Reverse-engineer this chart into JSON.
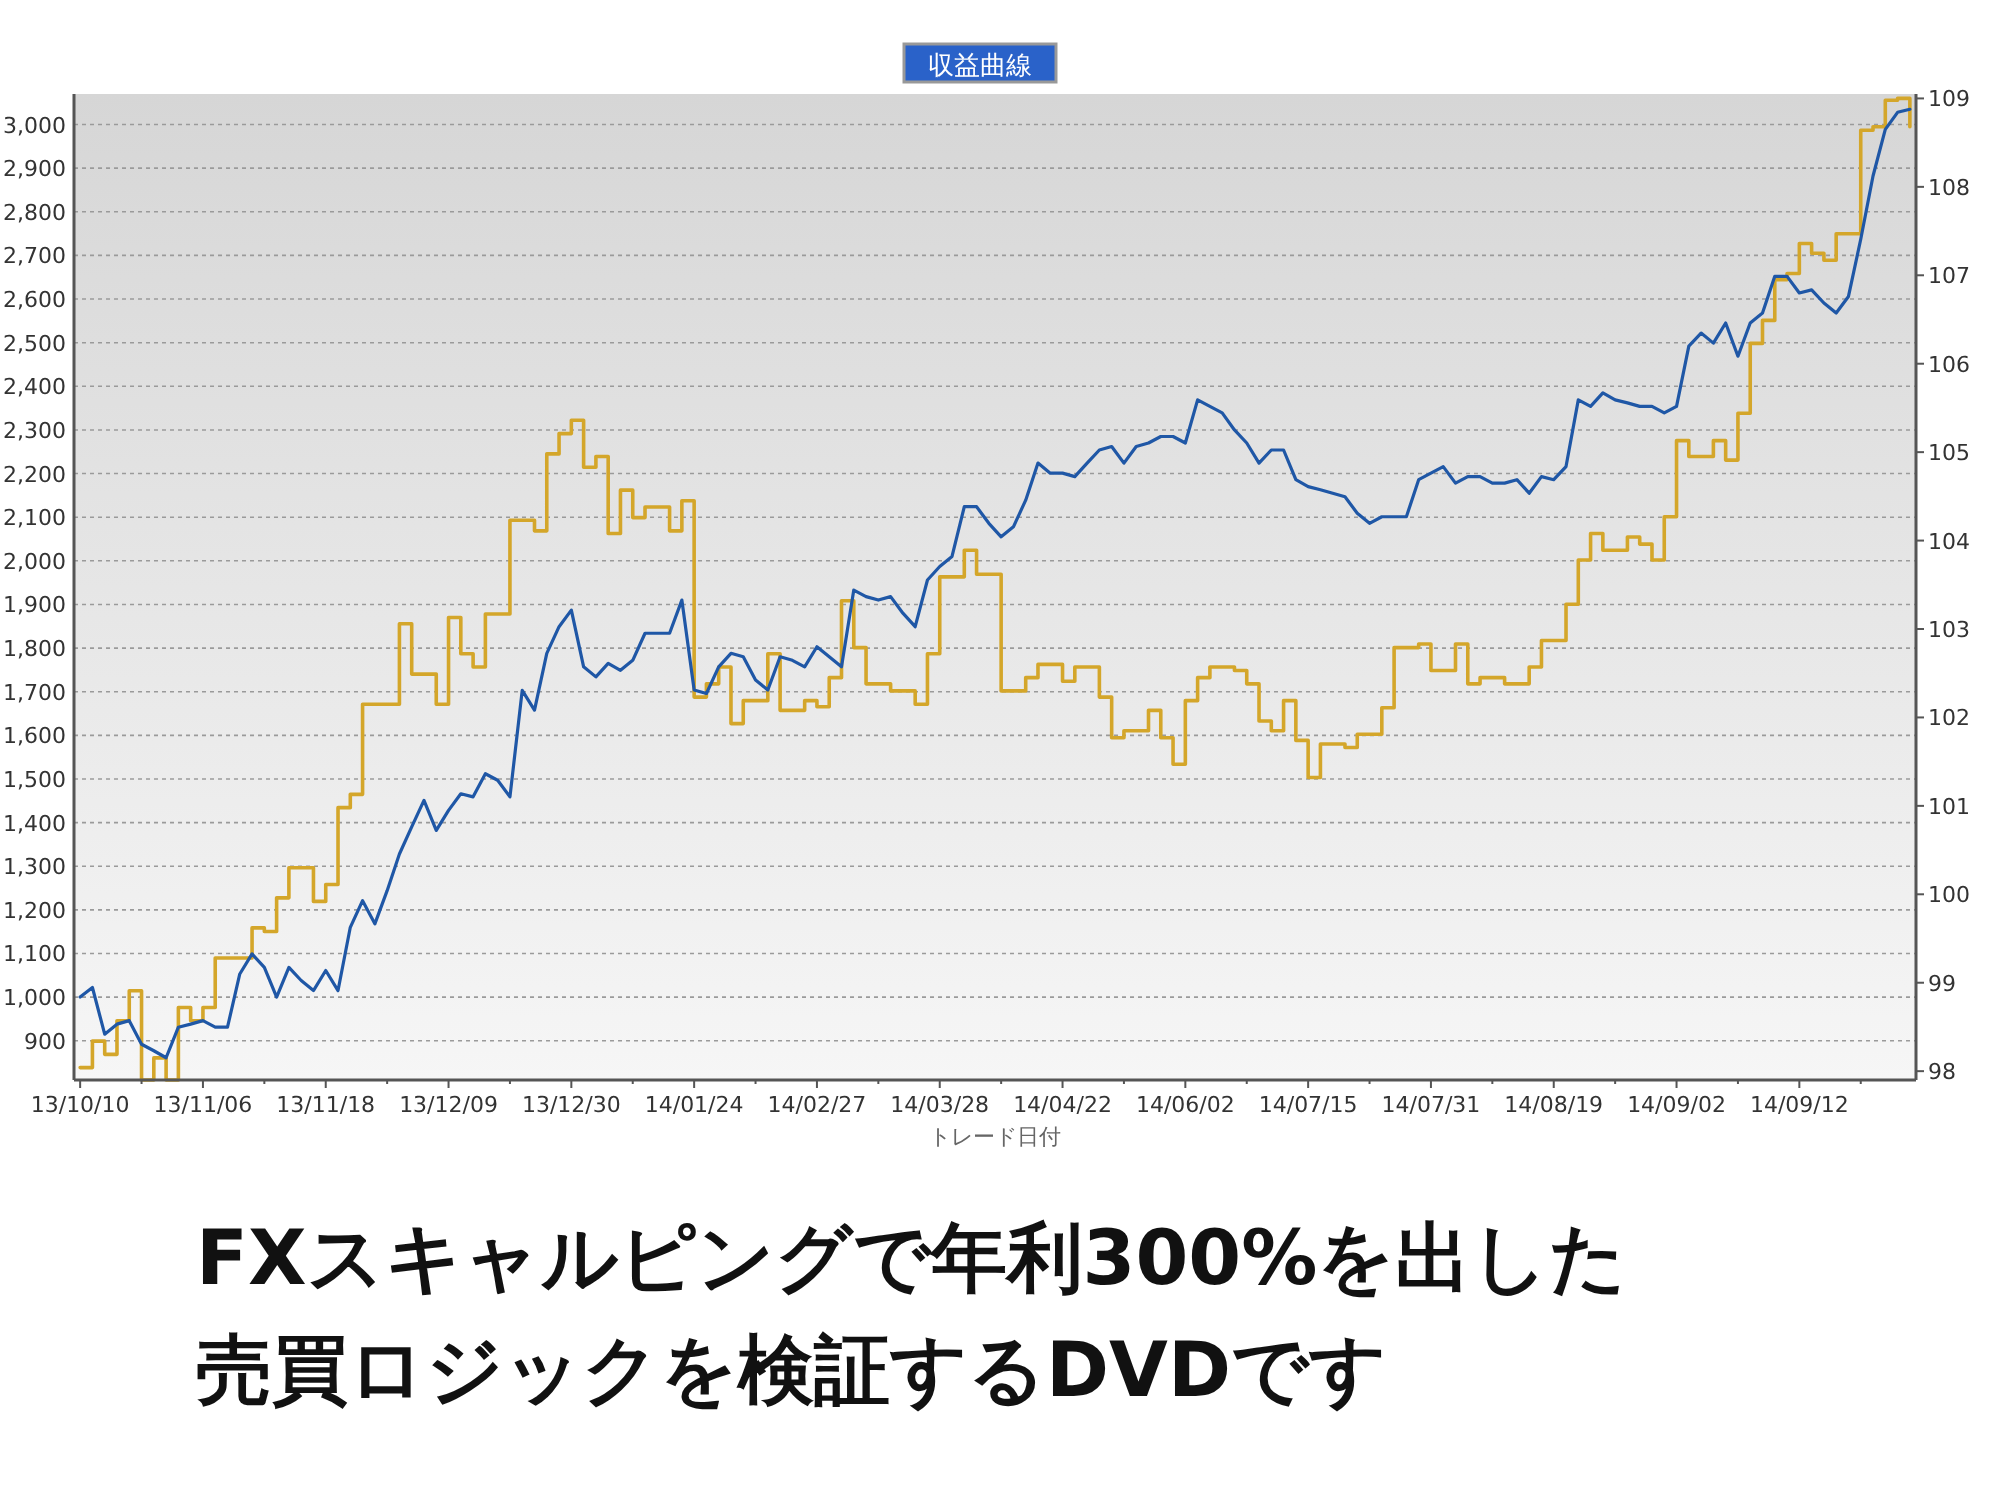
{
  "chart_data": {
    "type": "line",
    "title": "収益曲線",
    "xlabel": "トレード日付",
    "annotations": [
      "FXスキャルピングで年利300%を出した",
      "売買ロジックを検証するDVDです"
    ],
    "grid": "y",
    "categories": [
      "13/10/10",
      null,
      null,
      null,
      null,
      null,
      null,
      null,
      null,
      null,
      "13/11/06",
      null,
      null,
      null,
      null,
      null,
      null,
      null,
      null,
      null,
      "13/11/18",
      null,
      null,
      null,
      null,
      null,
      null,
      null,
      null,
      null,
      "13/12/09",
      null,
      null,
      null,
      null,
      null,
      null,
      null,
      null,
      null,
      "13/12/30",
      null,
      null,
      null,
      null,
      null,
      null,
      null,
      null,
      null,
      "14/01/24",
      null,
      null,
      null,
      null,
      null,
      null,
      null,
      null,
      null,
      "14/02/27",
      null,
      null,
      null,
      null,
      null,
      null,
      null,
      null,
      null,
      "14/03/28",
      null,
      null,
      null,
      null,
      null,
      null,
      null,
      null,
      null,
      "14/04/22",
      null,
      null,
      null,
      null,
      null,
      null,
      null,
      null,
      null,
      "14/06/02",
      null,
      null,
      null,
      null,
      null,
      null,
      null,
      null,
      null,
      "14/07/15",
      null,
      null,
      null,
      null,
      null,
      null,
      null,
      null,
      null,
      "14/07/31",
      null,
      null,
      null,
      null,
      null,
      null,
      null,
      null,
      null,
      "14/08/19",
      null,
      null,
      null,
      null,
      null,
      null,
      null,
      null,
      null,
      "14/09/02",
      null,
      null,
      null,
      null,
      null,
      null,
      null,
      null,
      null,
      "14/09/12",
      null,
      null,
      null,
      null,
      null,
      null,
      null,
      null,
      null
    ],
    "ylim": [
      810,
      3070
    ],
    "yticks": [
      {
        "value": 900,
        "label": "900"
      },
      {
        "value": 1000,
        "label": "1,000"
      },
      {
        "value": 1100,
        "label": "1,100"
      },
      {
        "value": 1200,
        "label": "1,200"
      },
      {
        "value": 1300,
        "label": "1,300"
      },
      {
        "value": 1400,
        "label": "1,400"
      },
      {
        "value": 1500,
        "label": "1,500"
      },
      {
        "value": 1600,
        "label": "1,600"
      },
      {
        "value": 1700,
        "label": "1,700"
      },
      {
        "value": 1800,
        "label": "1,800"
      },
      {
        "value": 1900,
        "label": "1,900"
      },
      {
        "value": 2000,
        "label": "2,000"
      },
      {
        "value": 2100,
        "label": "2,100"
      },
      {
        "value": 2200,
        "label": "2,200"
      },
      {
        "value": 2300,
        "label": "2,300"
      },
      {
        "value": 2400,
        "label": "2,400"
      },
      {
        "value": 2500,
        "label": "2,500"
      },
      {
        "value": 2600,
        "label": "2,600"
      },
      {
        "value": 2700,
        "label": "2,700"
      },
      {
        "value": 2800,
        "label": "2,800"
      },
      {
        "value": 2900,
        "label": "2,900"
      },
      {
        "value": 3000,
        "label": "3,000"
      }
    ],
    "y2lim": [
      97.9,
      109.05
    ],
    "y2ticks": [
      98,
      99,
      100,
      101,
      102,
      103,
      104,
      105,
      106,
      107,
      108,
      109
    ],
    "series": [
      {
        "type": "step",
        "axis": "y2",
        "color": "#d4a62a",
        "values": [
          98.04,
          98.34,
          98.19,
          98.57,
          98.91,
          97.9,
          98.15,
          97.9,
          98.72,
          98.57,
          98.72,
          99.28,
          99.28,
          99.28,
          99.62,
          99.58,
          99.96,
          100.3,
          100.3,
          99.92,
          100.11,
          100.98,
          101.13,
          102.15,
          102.15,
          102.15,
          103.06,
          102.49,
          102.49,
          102.15,
          103.13,
          102.72,
          102.57,
          103.17,
          103.17,
          104.23,
          104.23,
          104.11,
          104.98,
          105.21,
          105.36,
          104.83,
          104.95,
          104.08,
          104.57,
          104.26,
          104.38,
          104.38,
          104.11,
          104.45,
          102.23,
          102.38,
          102.57,
          101.93,
          102.19,
          102.19,
          102.72,
          102.08,
          102.08,
          102.19,
          102.12,
          102.45,
          103.32,
          102.79,
          102.38,
          102.38,
          102.3,
          102.3,
          102.15,
          102.72,
          103.59,
          103.59,
          103.89,
          103.62,
          103.62,
          102.3,
          102.3,
          102.45,
          102.6,
          102.6,
          102.41,
          102.57,
          102.57,
          102.23,
          101.77,
          101.85,
          101.85,
          102.08,
          101.77,
          101.47,
          102.19,
          102.45,
          102.57,
          102.57,
          102.53,
          102.38,
          101.96,
          101.85,
          102.19,
          101.74,
          101.32,
          101.7,
          101.7,
          101.66,
          101.81,
          101.81,
          102.11,
          102.79,
          102.79,
          102.83,
          102.53,
          102.53,
          102.83,
          102.38,
          102.45,
          102.45,
          102.38,
          102.38,
          102.57,
          102.87,
          102.87,
          103.28,
          103.78,
          104.08,
          103.89,
          103.89,
          104.04,
          103.96,
          103.78,
          104.27,
          105.13,
          104.95,
          104.95,
          105.13,
          104.91,
          105.44,
          106.23,
          106.49,
          106.95,
          107.02,
          107.36,
          107.25,
          107.17,
          107.47,
          107.47,
          108.64,
          108.68,
          108.98,
          109.0,
          108.68
        ]
      },
      {
        "type": "line",
        "color": "#1f57a6",
        "values": [
          1000,
          1022,
          915,
          938,
          946,
          892,
          877,
          861,
          931,
          938,
          946,
          931,
          931,
          1053,
          1099,
          1068,
          1000,
          1068,
          1038,
          1015,
          1061,
          1015,
          1160,
          1221,
          1168,
          1244,
          1328,
          1390,
          1451,
          1382,
          1428,
          1466,
          1459,
          1512,
          1497,
          1459,
          1703,
          1658,
          1788,
          1849,
          1887,
          1757,
          1734,
          1765,
          1749,
          1772,
          1834,
          1834,
          1834,
          1910,
          1704,
          1696,
          1757,
          1788,
          1780,
          1727,
          1704,
          1780,
          1772,
          1757,
          1803,
          1780,
          1757,
          1933,
          1918,
          1910,
          1918,
          1880,
          1849,
          1956,
          1987,
          2010,
          2124,
          2124,
          2086,
          2055,
          2078,
          2139,
          2224,
          2201,
          2201,
          2193,
          2224,
          2254,
          2262,
          2224,
          2262,
          2270,
          2285,
          2285,
          2270,
          2369,
          2354,
          2339,
          2300,
          2270,
          2224,
          2254,
          2254,
          2186,
          2170,
          2163,
          2155,
          2147,
          2109,
          2086,
          2101,
          2101,
          2101,
          2186,
          2201,
          2216,
          2178,
          2193,
          2193,
          2178,
          2178,
          2186,
          2155,
          2193,
          2186,
          2216,
          2369,
          2354,
          2385,
          2369,
          2362,
          2354,
          2354,
          2339,
          2354,
          2492,
          2522,
          2499,
          2545,
          2469,
          2545,
          2568,
          2652,
          2652,
          2614,
          2621,
          2591,
          2568,
          2606,
          2737,
          2882,
          2989,
          3028,
          3035
        ]
      }
    ]
  }
}
